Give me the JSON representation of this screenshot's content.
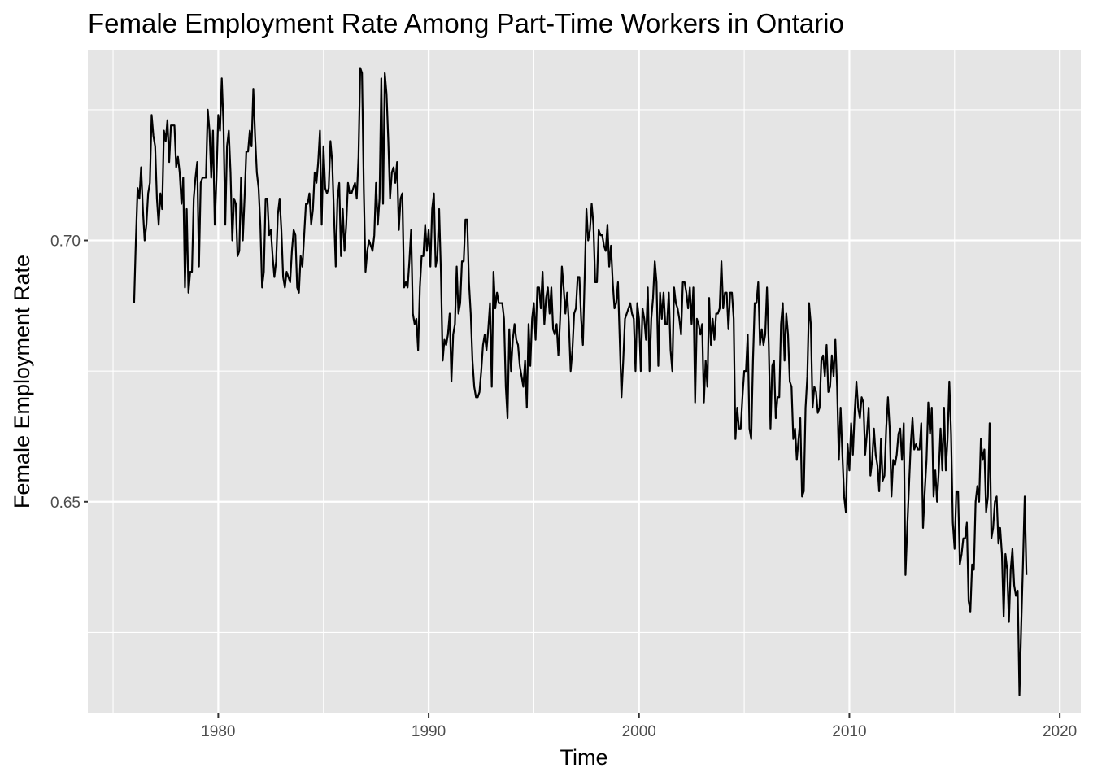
{
  "chart_data": {
    "type": "line",
    "title": "Female Employment Rate Among Part-Time Workers in Ontario",
    "xlabel": "Time",
    "ylabel": "Female Employment Rate",
    "xlim": [
      1973.8,
      2021.0
    ],
    "ylim": [
      0.6095,
      0.7365
    ],
    "x_ticks": [
      1980,
      1990,
      2000,
      2010,
      2020
    ],
    "x_tick_labels": [
      "1980",
      "1990",
      "2000",
      "2010",
      "2020"
    ],
    "y_ticks": [
      0.65,
      0.7
    ],
    "y_tick_labels": [
      "0.65",
      "0.70"
    ],
    "grid": true,
    "legend": "none",
    "colors": {
      "panel": "#e5e5e5",
      "grid": "#ffffff",
      "line": "#000000",
      "tick_text": "#4d4d4d"
    },
    "series": [
      {
        "x_start": 1976.0,
        "x_step": 0.083333,
        "values": [
          0.688,
          0.7,
          0.71,
          0.708,
          0.714,
          0.706,
          0.7,
          0.703,
          0.709,
          0.711,
          0.724,
          0.72,
          0.718,
          0.708,
          0.703,
          0.709,
          0.706,
          0.721,
          0.719,
          0.723,
          0.715,
          0.722,
          0.722,
          0.722,
          0.714,
          0.716,
          0.713,
          0.707,
          0.712,
          0.691,
          0.706,
          0.69,
          0.694,
          0.694,
          0.708,
          0.712,
          0.715,
          0.695,
          0.711,
          0.712,
          0.712,
          0.712,
          0.725,
          0.721,
          0.712,
          0.721,
          0.703,
          0.712,
          0.724,
          0.721,
          0.731,
          0.722,
          0.703,
          0.718,
          0.721,
          0.713,
          0.7,
          0.708,
          0.707,
          0.697,
          0.698,
          0.712,
          0.7,
          0.708,
          0.717,
          0.717,
          0.721,
          0.718,
          0.729,
          0.72,
          0.713,
          0.71,
          0.703,
          0.691,
          0.694,
          0.708,
          0.708,
          0.701,
          0.702,
          0.697,
          0.693,
          0.696,
          0.705,
          0.708,
          0.702,
          0.693,
          0.691,
          0.694,
          0.693,
          0.692,
          0.698,
          0.702,
          0.701,
          0.691,
          0.69,
          0.697,
          0.695,
          0.701,
          0.707,
          0.707,
          0.709,
          0.703,
          0.706,
          0.713,
          0.711,
          0.715,
          0.721,
          0.703,
          0.718,
          0.71,
          0.709,
          0.71,
          0.719,
          0.715,
          0.705,
          0.695,
          0.708,
          0.711,
          0.697,
          0.706,
          0.698,
          0.703,
          0.711,
          0.709,
          0.709,
          0.71,
          0.711,
          0.708,
          0.716,
          0.733,
          0.732,
          0.71,
          0.694,
          0.698,
          0.7,
          0.699,
          0.698,
          0.701,
          0.711,
          0.703,
          0.708,
          0.731,
          0.707,
          0.732,
          0.728,
          0.719,
          0.708,
          0.713,
          0.714,
          0.711,
          0.715,
          0.702,
          0.708,
          0.709,
          0.691,
          0.692,
          0.691,
          0.696,
          0.702,
          0.686,
          0.684,
          0.685,
          0.679,
          0.691,
          0.697,
          0.697,
          0.703,
          0.698,
          0.702,
          0.695,
          0.706,
          0.709,
          0.695,
          0.697,
          0.706,
          0.694,
          0.677,
          0.681,
          0.68,
          0.682,
          0.686,
          0.673,
          0.682,
          0.684,
          0.695,
          0.686,
          0.688,
          0.696,
          0.696,
          0.704,
          0.704,
          0.692,
          0.686,
          0.677,
          0.672,
          0.67,
          0.67,
          0.671,
          0.675,
          0.68,
          0.682,
          0.679,
          0.683,
          0.688,
          0.672,
          0.694,
          0.687,
          0.69,
          0.688,
          0.688,
          0.688,
          0.685,
          0.672,
          0.666,
          0.683,
          0.675,
          0.681,
          0.684,
          0.681,
          0.68,
          0.676,
          0.674,
          0.672,
          0.677,
          0.668,
          0.684,
          0.676,
          0.685,
          0.688,
          0.681,
          0.691,
          0.691,
          0.687,
          0.694,
          0.684,
          0.689,
          0.691,
          0.686,
          0.691,
          0.683,
          0.682,
          0.684,
          0.678,
          0.685,
          0.695,
          0.691,
          0.686,
          0.69,
          0.684,
          0.675,
          0.679,
          0.686,
          0.687,
          0.693,
          0.693,
          0.685,
          0.68,
          0.693,
          0.706,
          0.7,
          0.702,
          0.707,
          0.703,
          0.692,
          0.692,
          0.702,
          0.701,
          0.701,
          0.699,
          0.698,
          0.703,
          0.695,
          0.699,
          0.692,
          0.687,
          0.688,
          0.692,
          0.681,
          0.67,
          0.677,
          0.685,
          0.686,
          0.687,
          0.688,
          0.686,
          0.685,
          0.675,
          0.688,
          0.685,
          0.675,
          0.687,
          0.685,
          0.681,
          0.691,
          0.675,
          0.685,
          0.689,
          0.696,
          0.692,
          0.676,
          0.69,
          0.685,
          0.69,
          0.684,
          0.684,
          0.69,
          0.679,
          0.675,
          0.691,
          0.688,
          0.687,
          0.685,
          0.682,
          0.692,
          0.692,
          0.69,
          0.687,
          0.691,
          0.684,
          0.691,
          0.669,
          0.685,
          0.684,
          0.682,
          0.684,
          0.669,
          0.677,
          0.672,
          0.689,
          0.68,
          0.685,
          0.681,
          0.686,
          0.686,
          0.687,
          0.696,
          0.687,
          0.69,
          0.69,
          0.683,
          0.69,
          0.69,
          0.685,
          0.662,
          0.668,
          0.664,
          0.664,
          0.67,
          0.675,
          0.675,
          0.682,
          0.664,
          0.662,
          0.677,
          0.688,
          0.688,
          0.692,
          0.68,
          0.683,
          0.68,
          0.682,
          0.691,
          0.68,
          0.664,
          0.676,
          0.677,
          0.666,
          0.67,
          0.67,
          0.684,
          0.688,
          0.677,
          0.686,
          0.682,
          0.673,
          0.672,
          0.662,
          0.664,
          0.658,
          0.662,
          0.666,
          0.651,
          0.652,
          0.668,
          0.674,
          0.688,
          0.684,
          0.668,
          0.672,
          0.671,
          0.667,
          0.668,
          0.677,
          0.678,
          0.674,
          0.68,
          0.671,
          0.672,
          0.678,
          0.674,
          0.681,
          0.672,
          0.658,
          0.668,
          0.659,
          0.651,
          0.648,
          0.661,
          0.656,
          0.665,
          0.659,
          0.667,
          0.673,
          0.668,
          0.666,
          0.67,
          0.669,
          0.659,
          0.663,
          0.668,
          0.655,
          0.658,
          0.664,
          0.659,
          0.657,
          0.652,
          0.662,
          0.654,
          0.655,
          0.664,
          0.67,
          0.664,
          0.651,
          0.658,
          0.657,
          0.659,
          0.663,
          0.664,
          0.658,
          0.665,
          0.636,
          0.645,
          0.653,
          0.661,
          0.666,
          0.66,
          0.661,
          0.66,
          0.66,
          0.665,
          0.645,
          0.652,
          0.658,
          0.669,
          0.663,
          0.668,
          0.651,
          0.656,
          0.65,
          0.656,
          0.664,
          0.656,
          0.668,
          0.656,
          0.662,
          0.673,
          0.663,
          0.646,
          0.641,
          0.652,
          0.652,
          0.638,
          0.64,
          0.643,
          0.643,
          0.646,
          0.631,
          0.629,
          0.638,
          0.637,
          0.65,
          0.653,
          0.65,
          0.662,
          0.658,
          0.66,
          0.648,
          0.651,
          0.665,
          0.643,
          0.645,
          0.65,
          0.651,
          0.642,
          0.645,
          0.64,
          0.628,
          0.64,
          0.637,
          0.627,
          0.637,
          0.641,
          0.634,
          0.632,
          0.633,
          0.613,
          0.626,
          0.638,
          0.651,
          0.636
        ]
      }
    ]
  }
}
